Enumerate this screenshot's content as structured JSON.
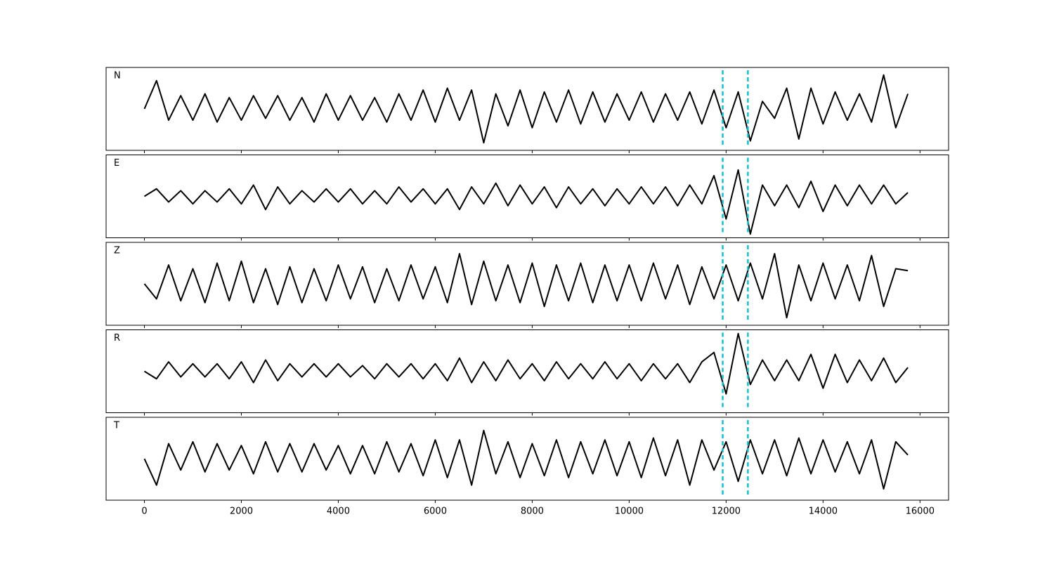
{
  "chart_data": [
    {
      "type": "line",
      "label": "N",
      "color": "#000000",
      "xlim": [
        -790,
        16590
      ],
      "ylim": [
        -1.1,
        1.1
      ],
      "xticks": [
        0,
        2000,
        4000,
        6000,
        8000,
        10000,
        12000,
        14000,
        16000
      ],
      "vlines": [
        11930,
        12450
      ],
      "vline_color": "#17becf",
      "x": [
        0,
        250,
        500,
        750,
        1000,
        1250,
        1500,
        1750,
        2000,
        2250,
        2500,
        2750,
        3000,
        3250,
        3500,
        3750,
        4000,
        4250,
        4500,
        4750,
        5000,
        5250,
        5500,
        5750,
        6000,
        6250,
        6500,
        6750,
        7000,
        7250,
        7500,
        7750,
        8000,
        8250,
        8500,
        8750,
        9000,
        9250,
        9500,
        9750,
        10000,
        10250,
        10500,
        10750,
        11000,
        11250,
        11500,
        11750,
        12000,
        12250,
        12500,
        12750,
        13000,
        13250,
        13500,
        13750,
        14000,
        14250,
        14500,
        14750,
        15000,
        15250,
        15500,
        15750
      ],
      "values": [
        0,
        0.75,
        -0.3,
        0.35,
        -0.3,
        0.4,
        -0.35,
        0.3,
        -0.3,
        0.35,
        -0.25,
        0.35,
        -0.3,
        0.3,
        -0.35,
        0.4,
        -0.3,
        0.35,
        -0.3,
        0.3,
        -0.35,
        0.4,
        -0.3,
        0.5,
        -0.35,
        0.55,
        -0.3,
        0.5,
        -0.9,
        0.4,
        -0.45,
        0.5,
        -0.5,
        0.45,
        -0.35,
        0.5,
        -0.4,
        0.45,
        -0.35,
        0.4,
        -0.3,
        0.45,
        -0.35,
        0.4,
        -0.3,
        0.45,
        -0.4,
        0.5,
        -0.5,
        0.45,
        -0.85,
        0.2,
        -0.25,
        0.55,
        -0.8,
        0.55,
        -0.4,
        0.45,
        -0.3,
        0.4,
        -0.35,
        0.9,
        -0.5,
        0.4
      ]
    },
    {
      "type": "line",
      "label": "E",
      "color": "#000000",
      "xlim": [
        -790,
        16590
      ],
      "ylim": [
        -1.1,
        1.1
      ],
      "xticks": [
        0,
        2000,
        4000,
        6000,
        8000,
        10000,
        12000,
        14000,
        16000
      ],
      "vlines": [
        11930,
        12450
      ],
      "vline_color": "#17becf",
      "x": [
        0,
        250,
        500,
        750,
        1000,
        1250,
        1500,
        1750,
        2000,
        2250,
        2500,
        2750,
        3000,
        3250,
        3500,
        3750,
        4000,
        4250,
        4500,
        4750,
        5000,
        5250,
        5500,
        5750,
        6000,
        6250,
        6500,
        6750,
        7000,
        7250,
        7500,
        7750,
        8000,
        8250,
        8500,
        8750,
        9000,
        9250,
        9500,
        9750,
        10000,
        10250,
        10500,
        10750,
        11000,
        11250,
        11500,
        11750,
        12000,
        12250,
        12500,
        12750,
        13000,
        13250,
        13500,
        13750,
        14000,
        14250,
        14500,
        14750,
        15000,
        15250,
        15500,
        15750
      ],
      "values": [
        0,
        0.2,
        -0.15,
        0.15,
        -0.2,
        0.15,
        -0.15,
        0.2,
        -0.2,
        0.3,
        -0.35,
        0.25,
        -0.2,
        0.15,
        -0.15,
        0.2,
        -0.15,
        0.2,
        -0.2,
        0.15,
        -0.2,
        0.25,
        -0.15,
        0.2,
        -0.2,
        0.2,
        -0.35,
        0.25,
        -0.2,
        0.35,
        -0.25,
        0.3,
        -0.2,
        0.25,
        -0.3,
        0.25,
        -0.2,
        0.2,
        -0.25,
        0.2,
        -0.2,
        0.25,
        -0.2,
        0.25,
        -0.25,
        0.3,
        -0.2,
        0.55,
        -0.6,
        0.7,
        -1.0,
        0.3,
        -0.25,
        0.3,
        -0.3,
        0.4,
        -0.4,
        0.3,
        -0.25,
        0.3,
        -0.2,
        0.3,
        -0.2,
        0.1
      ]
    },
    {
      "type": "line",
      "label": "Z",
      "color": "#000000",
      "xlim": [
        -790,
        16590
      ],
      "ylim": [
        -1.1,
        1.1
      ],
      "xticks": [
        0,
        2000,
        4000,
        6000,
        8000,
        10000,
        12000,
        14000,
        16000
      ],
      "vlines": [
        11930,
        12450
      ],
      "vline_color": "#17becf",
      "x": [
        0,
        250,
        500,
        750,
        1000,
        1250,
        1500,
        1750,
        2000,
        2250,
        2500,
        2750,
        3000,
        3250,
        3500,
        3750,
        4000,
        4250,
        4500,
        4750,
        5000,
        5250,
        5500,
        5750,
        6000,
        6250,
        6500,
        6750,
        7000,
        7250,
        7500,
        7750,
        8000,
        8250,
        8500,
        8750,
        9000,
        9250,
        9500,
        9750,
        10000,
        10250,
        10500,
        10750,
        11000,
        11250,
        11500,
        11750,
        12000,
        12250,
        12500,
        12750,
        13000,
        13250,
        13500,
        13750,
        14000,
        14250,
        14500,
        14750,
        15000,
        15250,
        15500,
        15750
      ],
      "values": [
        0,
        -0.4,
        0.5,
        -0.45,
        0.4,
        -0.5,
        0.55,
        -0.45,
        0.6,
        -0.5,
        0.4,
        -0.55,
        0.45,
        -0.5,
        0.4,
        -0.45,
        0.5,
        -0.4,
        0.45,
        -0.5,
        0.4,
        -0.45,
        0.5,
        -0.4,
        0.45,
        -0.5,
        0.8,
        -0.55,
        0.6,
        -0.45,
        0.5,
        -0.5,
        0.55,
        -0.6,
        0.5,
        -0.45,
        0.55,
        -0.5,
        0.5,
        -0.45,
        0.5,
        -0.45,
        0.55,
        -0.4,
        0.5,
        -0.55,
        0.45,
        -0.4,
        0.5,
        -0.45,
        0.55,
        -0.4,
        0.8,
        -0.9,
        0.5,
        -0.45,
        0.55,
        -0.4,
        0.5,
        -0.45,
        0.75,
        -0.6,
        0.4,
        0.35
      ]
    },
    {
      "type": "line",
      "label": "R",
      "color": "#000000",
      "xlim": [
        -790,
        16590
      ],
      "ylim": [
        -1.1,
        1.1
      ],
      "xticks": [
        0,
        2000,
        4000,
        6000,
        8000,
        10000,
        12000,
        14000,
        16000
      ],
      "vlines": [
        11930,
        12450
      ],
      "vline_color": "#17becf",
      "x": [
        0,
        250,
        500,
        750,
        1000,
        1250,
        1500,
        1750,
        2000,
        2250,
        2500,
        2750,
        3000,
        3250,
        3500,
        3750,
        4000,
        4250,
        4500,
        4750,
        5000,
        5250,
        5500,
        5750,
        6000,
        6250,
        6500,
        6750,
        7000,
        7250,
        7500,
        7750,
        8000,
        8250,
        8500,
        8750,
        9000,
        9250,
        9500,
        9750,
        10000,
        10250,
        10500,
        10750,
        11000,
        11250,
        11500,
        11750,
        12000,
        12250,
        12500,
        12750,
        13000,
        13250,
        13500,
        13750,
        14000,
        14250,
        14500,
        14750,
        15000,
        15250,
        15500,
        15750
      ],
      "values": [
        0,
        -0.2,
        0.25,
        -0.15,
        0.2,
        -0.15,
        0.2,
        -0.2,
        0.25,
        -0.3,
        0.3,
        -0.25,
        0.2,
        -0.15,
        0.2,
        -0.15,
        0.2,
        -0.15,
        0.15,
        -0.2,
        0.2,
        -0.15,
        0.2,
        -0.2,
        0.2,
        -0.25,
        0.35,
        -0.3,
        0.25,
        -0.25,
        0.3,
        -0.2,
        0.2,
        -0.25,
        0.25,
        -0.2,
        0.2,
        -0.2,
        0.25,
        -0.2,
        0.2,
        -0.25,
        0.2,
        -0.2,
        0.2,
        -0.3,
        0.25,
        0.5,
        -0.6,
        1.0,
        -0.35,
        0.3,
        -0.25,
        0.3,
        -0.25,
        0.45,
        -0.45,
        0.45,
        -0.3,
        0.3,
        -0.25,
        0.35,
        -0.3,
        0.1
      ]
    },
    {
      "type": "line",
      "label": "T",
      "color": "#000000",
      "xlim": [
        -790,
        16590
      ],
      "ylim": [
        -1.1,
        1.1
      ],
      "xticks": [
        0,
        2000,
        4000,
        6000,
        8000,
        10000,
        12000,
        14000,
        16000
      ],
      "vlines": [
        11930,
        12450
      ],
      "vline_color": "#17becf",
      "x": [
        0,
        250,
        500,
        750,
        1000,
        1250,
        1500,
        1750,
        2000,
        2250,
        2500,
        2750,
        3000,
        3250,
        3500,
        3750,
        4000,
        4250,
        4500,
        4750,
        5000,
        5250,
        5500,
        5750,
        6000,
        6250,
        6500,
        6750,
        7000,
        7250,
        7500,
        7750,
        8000,
        8250,
        8500,
        8750,
        9000,
        9250,
        9500,
        9750,
        10000,
        10250,
        10500,
        10750,
        11000,
        11250,
        11500,
        11750,
        12000,
        12250,
        12500,
        12750,
        13000,
        13250,
        13500,
        13750,
        14000,
        14250,
        14500,
        14750,
        15000,
        15250,
        15500,
        15750
      ],
      "values": [
        0,
        -0.7,
        0.4,
        -0.3,
        0.45,
        -0.35,
        0.4,
        -0.3,
        0.35,
        -0.4,
        0.45,
        -0.35,
        0.4,
        -0.35,
        0.4,
        -0.3,
        0.35,
        -0.4,
        0.35,
        -0.4,
        0.45,
        -0.35,
        0.4,
        -0.45,
        0.5,
        -0.5,
        0.5,
        -0.7,
        0.75,
        -0.4,
        0.45,
        -0.5,
        0.4,
        -0.45,
        0.5,
        -0.5,
        0.45,
        -0.4,
        0.5,
        -0.45,
        0.45,
        -0.5,
        0.55,
        -0.45,
        0.5,
        -0.7,
        0.5,
        -0.3,
        0.45,
        -0.6,
        0.5,
        -0.4,
        0.5,
        -0.45,
        0.55,
        -0.4,
        0.5,
        -0.35,
        0.45,
        -0.4,
        0.5,
        -0.8,
        0.45,
        0.1
      ]
    }
  ]
}
